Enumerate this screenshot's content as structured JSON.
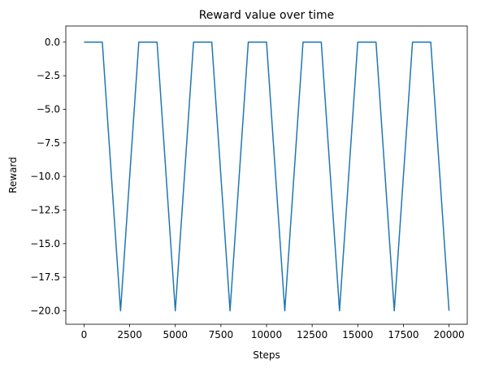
{
  "chart_data": {
    "type": "line",
    "title": "Reward value over time",
    "xlabel": "Steps",
    "ylabel": "Reward",
    "xlim": [
      -1000,
      21000
    ],
    "ylim": [
      -21,
      1.2
    ],
    "x_ticks": [
      0,
      2500,
      5000,
      7500,
      10000,
      12500,
      15000,
      17500,
      20000
    ],
    "x_tick_labels": [
      "0",
      "2500",
      "5000",
      "7500",
      "10000",
      "12500",
      "15000",
      "17500",
      "20000"
    ],
    "y_ticks": [
      0.0,
      -2.5,
      -5.0,
      -7.5,
      -10.0,
      -12.5,
      -15.0,
      -17.5,
      -20.0
    ],
    "y_tick_labels": [
      "0.0",
      "−2.5",
      "−5.0",
      "−7.5",
      "−10.0",
      "−12.5",
      "−15.0",
      "−17.5",
      "−20.0"
    ],
    "grid": false,
    "legend": "none",
    "line_color": "#1f77b4",
    "series": [
      {
        "x": [
          0,
          1000,
          2000,
          3000,
          4000,
          5000,
          6000,
          7000,
          8000,
          9000,
          10000,
          11000,
          12000,
          13000,
          14000,
          15000,
          16000,
          17000,
          18000,
          19000,
          20000
        ],
        "y": [
          0,
          0,
          -20,
          0,
          0,
          -20,
          0,
          0,
          -20,
          0,
          0,
          -20,
          0,
          0,
          -20,
          0,
          0,
          -20,
          0,
          0,
          -20
        ]
      }
    ]
  }
}
